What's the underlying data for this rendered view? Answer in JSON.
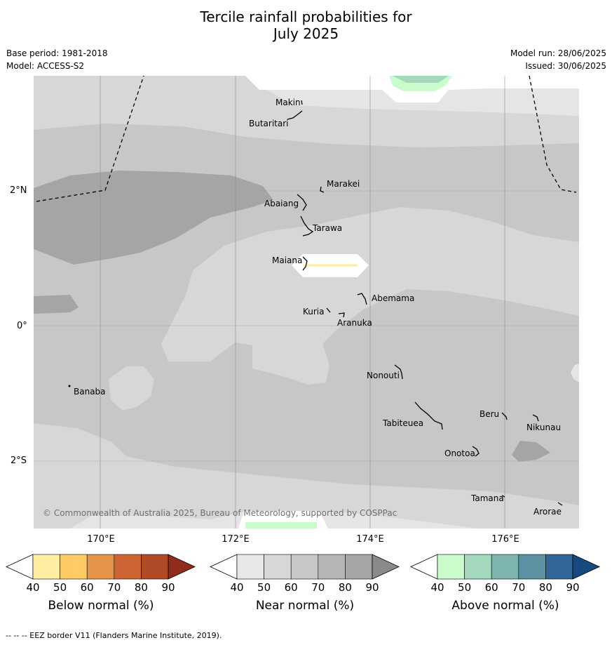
{
  "title_line1": "Tercile rainfall probabilities for",
  "title_line2": "July 2025",
  "base_period": "Base period: 1981-2018",
  "model": "Model: ACCESS-S2",
  "model_run": "Model run: 28/06/2025",
  "issued": "Issued: 30/06/2025",
  "lat_labels": [
    "2°N",
    "0°",
    "2°S"
  ],
  "lon_labels": [
    "170°E",
    "172°E",
    "174°E",
    "176°E"
  ],
  "islands": [
    "Makin",
    "Butaritari",
    "Marakei",
    "Abaiang",
    "Tarawa",
    "Maiana",
    "Abemama",
    "Kuria",
    "Aranuka",
    "Nonouti",
    "Banaba",
    "Tabiteuea",
    "Beru",
    "Nikunau",
    "Onotoa",
    "Tamana",
    "Arorae"
  ],
  "copyright": "© Commonwealth of Australia 2025, Bureau of Meteorology, supported by COSPPac",
  "colorbars": [
    {
      "title": "Below normal (%)",
      "ticks": [
        "40",
        "50",
        "60",
        "70",
        "80",
        "90"
      ],
      "colors": [
        "#ffeea1",
        "#fecb67",
        "#e3944a",
        "#cf6434",
        "#b04a27",
        "#8e2d1a"
      ]
    },
    {
      "title": "Near normal (%)",
      "ticks": [
        "40",
        "50",
        "60",
        "70",
        "80",
        "90"
      ],
      "colors": [
        "#e7e7e7",
        "#d7d7d7",
        "#c7c7c7",
        "#b5b5b5",
        "#a5a5a5",
        "#8a8a8a"
      ]
    },
    {
      "title": "Above normal (%)",
      "ticks": [
        "40",
        "50",
        "60",
        "70",
        "80",
        "90"
      ],
      "colors": [
        "#c9fbcb",
        "#a3d8bd",
        "#7db4b0",
        "#5b91a0",
        "#326699",
        "#17497f"
      ]
    }
  ],
  "footer": "--  --  -- EEZ border V11 (Flanders Marine Institute, 2019)."
}
